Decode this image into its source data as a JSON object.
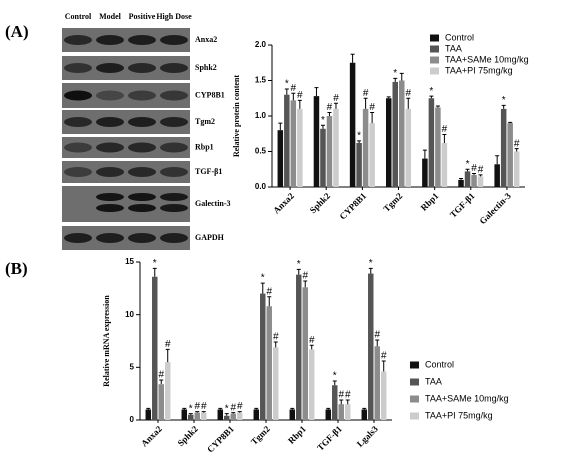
{
  "panel_labels": [
    "(A)",
    "(B)"
  ],
  "blot": {
    "columns": [
      "Control",
      "Model",
      "Positive",
      "High Dose"
    ],
    "rows": [
      "Anxa2",
      "Sphk2",
      "CYP8B1",
      "Tgm2",
      "Rbp1",
      "TGF-β1",
      "Galectin-3",
      "GAPDH"
    ]
  },
  "chart_data": [
    {
      "type": "bar",
      "y_label": "Relative protein content",
      "categories": [
        "Anxa2",
        "Sphk2",
        "CYP8B1",
        "Tgm2",
        "Rbp1",
        "TGF-β1",
        "Galectin-3"
      ],
      "ylim": [
        0,
        2
      ],
      "yticks": [
        {
          "value": 0,
          "label": "0.0"
        },
        {
          "value": 0.5,
          "label": "0.5"
        },
        {
          "value": 1,
          "label": "1.0"
        },
        {
          "value": 1.5,
          "label": "1.5"
        },
        {
          "value": 2,
          "label": "2.0"
        }
      ],
      "legend": "top-right",
      "series": [
        {
          "name": "Control",
          "color": "#111111",
          "values": [
            0.8,
            1.28,
            1.75,
            1.25,
            0.4,
            0.1,
            0.32
          ],
          "errors": [
            0.1,
            0.12,
            0.12,
            0.02,
            0.12,
            0.02,
            0.12
          ],
          "annotations": [
            null,
            null,
            null,
            null,
            null,
            null,
            null
          ]
        },
        {
          "name": "TAA",
          "color": "#555555",
          "values": [
            1.3,
            0.82,
            0.62,
            1.48,
            1.25,
            0.22,
            1.1
          ],
          "errors": [
            0.08,
            0.05,
            0.03,
            0.05,
            0.03,
            0.03,
            0.05
          ],
          "annotations": [
            "*",
            "*",
            "*",
            "*",
            "*",
            "*",
            "*"
          ]
        },
        {
          "name": "TAA+SAMe 10mg/kg",
          "color": "#8c8c8c",
          "values": [
            1.22,
            1.0,
            1.1,
            1.5,
            1.12,
            0.17,
            0.9
          ],
          "errors": [
            0.1,
            0.05,
            0.15,
            0.1,
            0.02,
            0.02,
            0.01
          ],
          "annotations": [
            "#",
            "#",
            "#",
            null,
            null,
            "#",
            null
          ]
        },
        {
          "name": "TAA+PI 75mg/kg",
          "color": "#cccccc",
          "values": [
            1.1,
            1.1,
            0.9,
            1.1,
            0.62,
            0.15,
            0.5
          ],
          "errors": [
            0.12,
            0.08,
            0.15,
            0.15,
            0.12,
            0.02,
            0.04
          ],
          "annotations": [
            "#",
            "#",
            "#",
            "#",
            "#",
            "#",
            "#"
          ]
        }
      ]
    },
    {
      "type": "bar",
      "y_label": "Relative mRNA expression",
      "categories": [
        "Anxa2",
        "Sphk2",
        "CYP8B1",
        "Tgm2",
        "Rbp1",
        "TGF-β1",
        "Lgals3"
      ],
      "ylim": [
        0,
        15
      ],
      "yticks": [
        0,
        5,
        10,
        15
      ],
      "legend": "right",
      "series": [
        {
          "name": "Control",
          "color": "#111111",
          "values": [
            1,
            1,
            1,
            1,
            1,
            1,
            1
          ],
          "errors": [
            0.1,
            0.1,
            0.1,
            0.1,
            0.1,
            0.1,
            0.1
          ],
          "annotations": [
            null,
            null,
            null,
            null,
            null,
            null,
            null
          ]
        },
        {
          "name": "TAA",
          "color": "#555555",
          "values": [
            13.6,
            0.5,
            0.4,
            12,
            13.8,
            3.3,
            13.9
          ],
          "errors": [
            0.8,
            0.1,
            0.2,
            1,
            0.5,
            0.4,
            0.5
          ],
          "annotations": [
            "*",
            "*",
            "*",
            "*",
            "*",
            "*",
            "*"
          ]
        },
        {
          "name": "TAA+SAMe 10mg/kg",
          "color": "#8c8c8c",
          "values": [
            3.4,
            0.7,
            0.6,
            10.8,
            12.6,
            1.5,
            7.0
          ],
          "errors": [
            0.4,
            0.1,
            0.1,
            0.9,
            0.6,
            0.4,
            0.6
          ],
          "annotations": [
            "#",
            "#",
            "#",
            "#",
            "#",
            "#",
            "#"
          ]
        },
        {
          "name": "TAA+PI 75mg/kg",
          "color": "#cccccc",
          "values": [
            5.5,
            0.7,
            0.7,
            6.9,
            6.7,
            1.5,
            4.6
          ],
          "errors": [
            1.2,
            0.1,
            0.1,
            0.5,
            0.4,
            0.4,
            1
          ],
          "annotations": [
            "#",
            "#",
            "#",
            "#",
            "#",
            "#",
            "#"
          ]
        }
      ]
    }
  ]
}
